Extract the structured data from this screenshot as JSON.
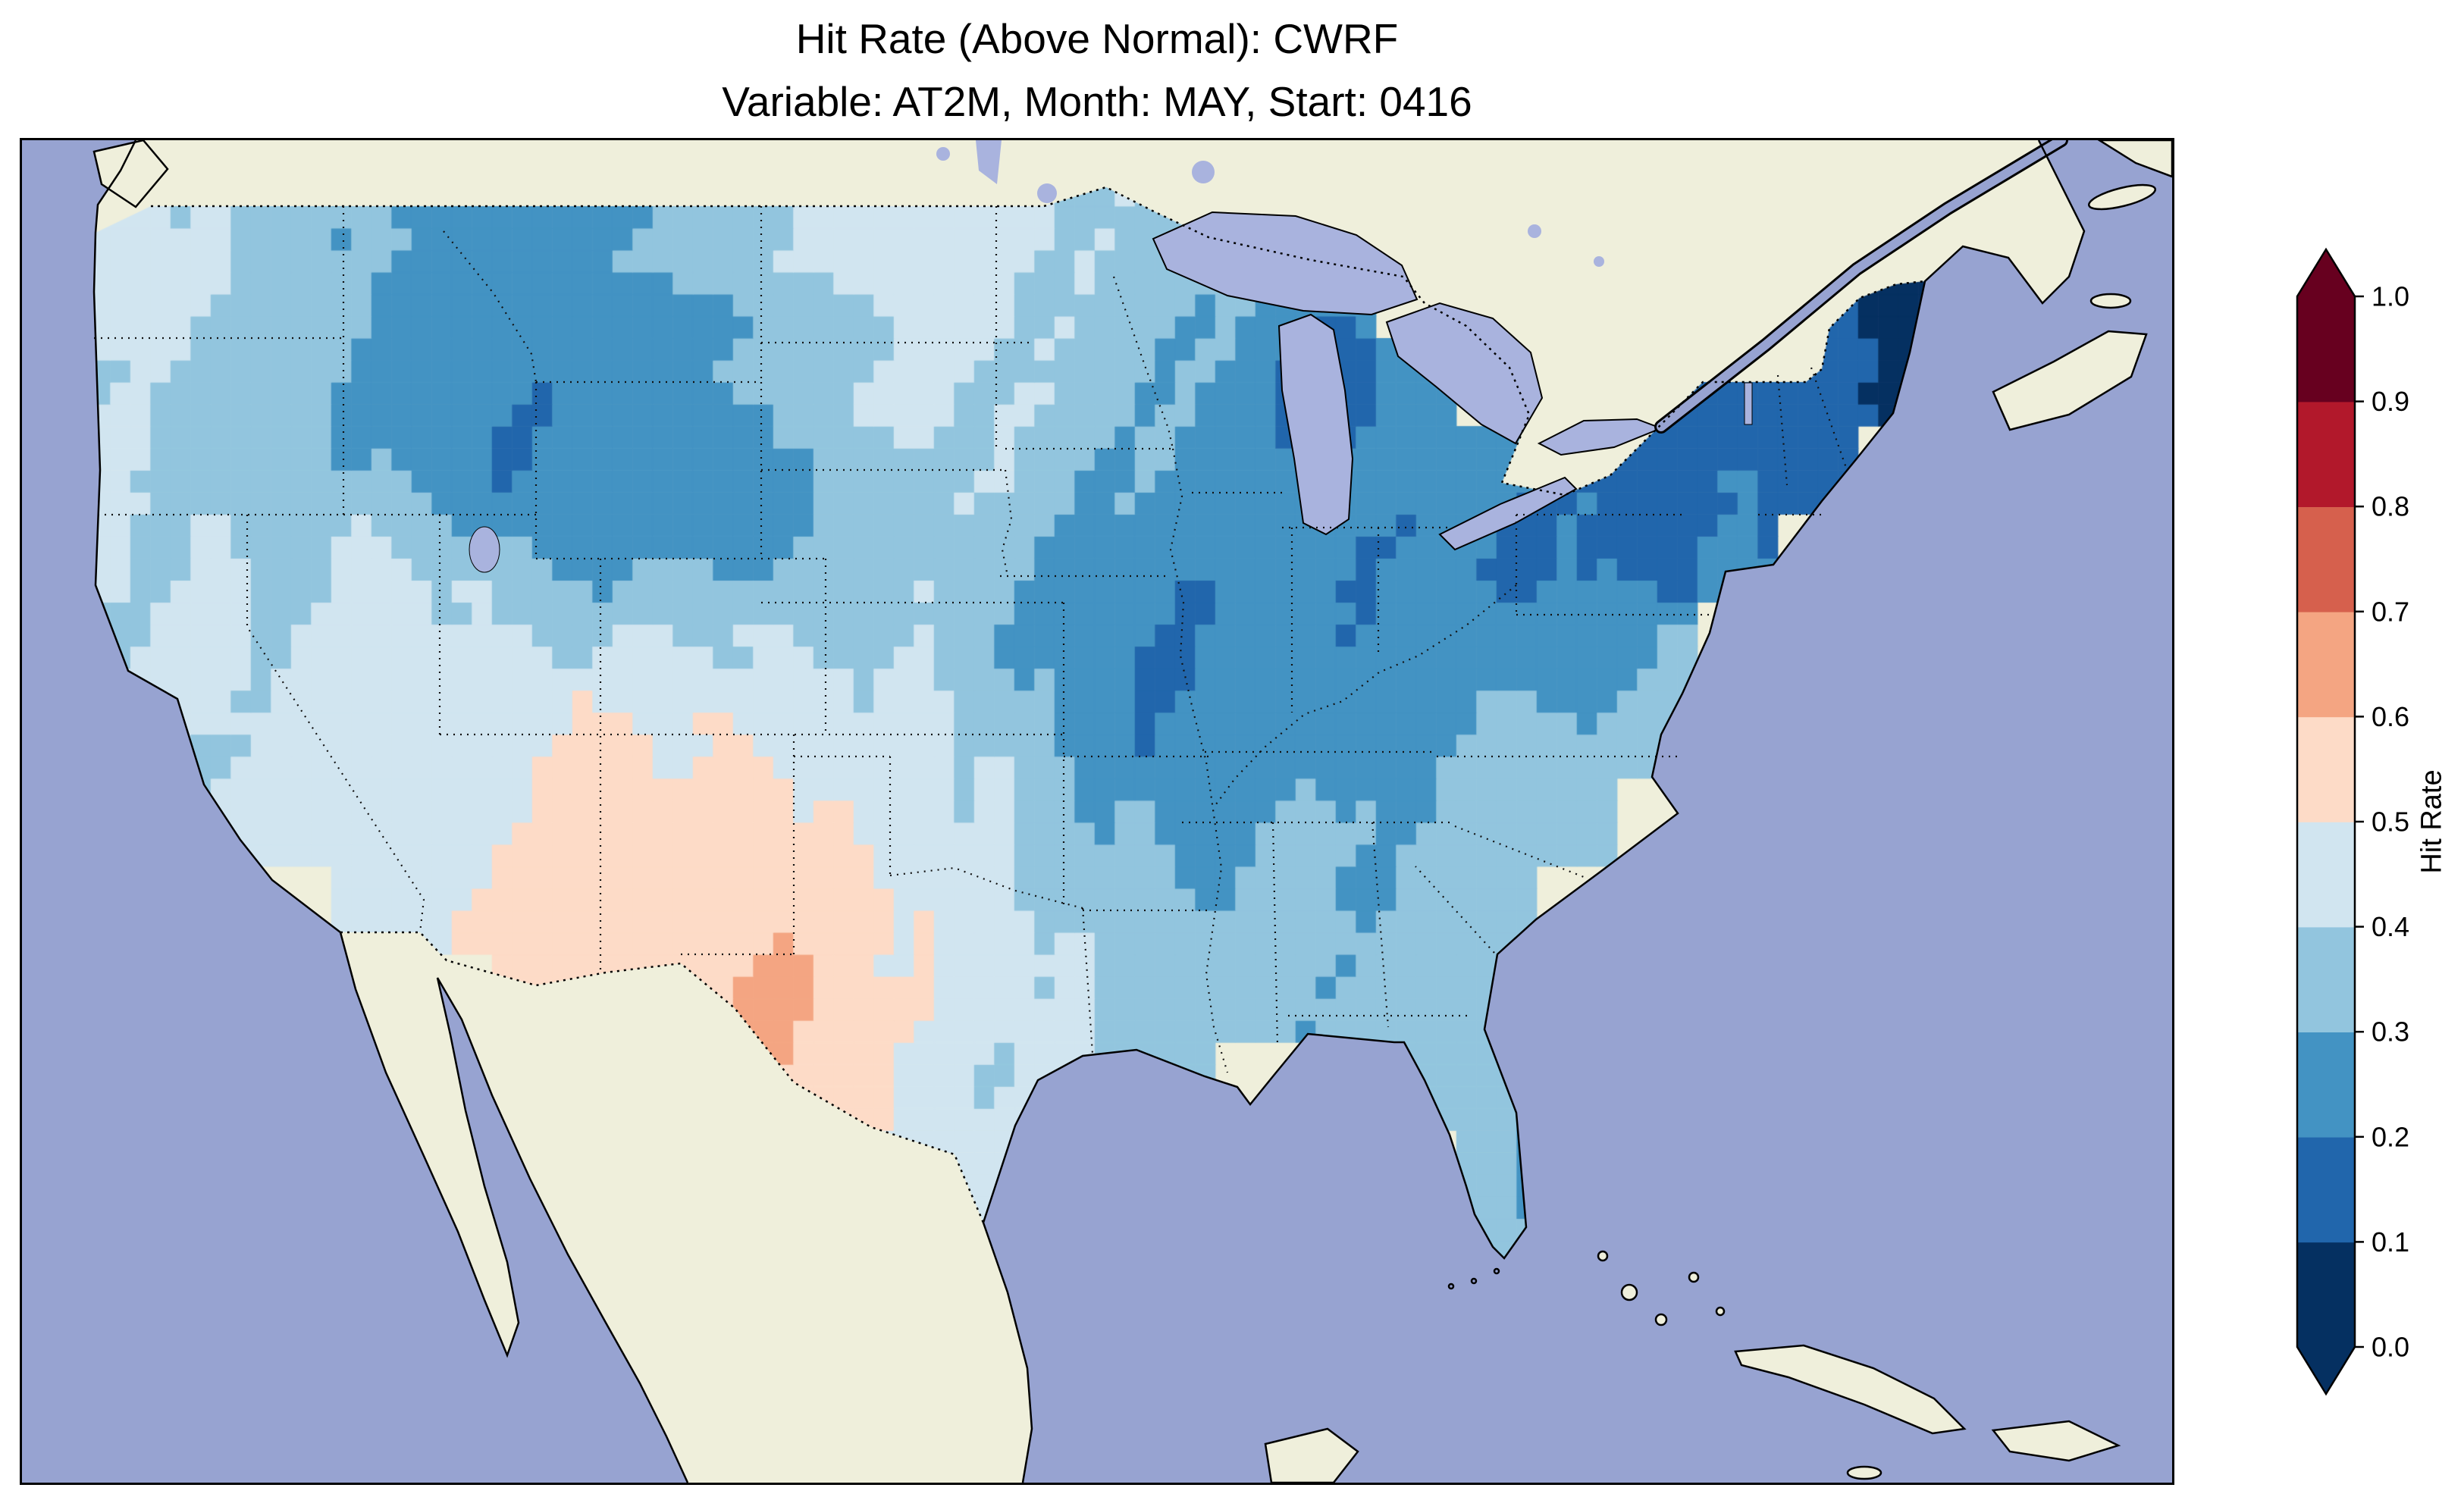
{
  "figure": {
    "title_line1": "Hit Rate (Above Normal): CWRF",
    "title_line2": "Variable: AT2M, Month: MAY, Start: 0416"
  },
  "colorbar": {
    "label": "Hit Rate",
    "ticks": [
      "1.0",
      "0.9",
      "0.8",
      "0.7",
      "0.6",
      "0.5",
      "0.4",
      "0.3",
      "0.2",
      "0.1",
      "0.0"
    ],
    "bin_edges": [
      0.0,
      0.1,
      0.2,
      0.3,
      0.4,
      0.5,
      0.6,
      0.7,
      0.8,
      0.9,
      1.0
    ],
    "colors_low_to_high": [
      "#053061",
      "#2166ac",
      "#4393c3",
      "#92c5de",
      "#d1e5f0",
      "#fddbc7",
      "#f4a582",
      "#d6604d",
      "#b2182b",
      "#67001f"
    ],
    "under_color": "#053061",
    "over_color": "#67001f"
  },
  "map_colors": {
    "ocean": "#97a3d1",
    "land": "#efefdb",
    "lakes": "#a9b3de",
    "coastline": "#000000"
  },
  "chart_data": {
    "type": "heatmap",
    "title": "Hit Rate (Above Normal): CWRF",
    "subtitle": "Variable: AT2M, Month: MAY, Start: 0416",
    "metric": "Hit Rate (Above Normal)",
    "model": "CWRF",
    "variable": "AT2M",
    "month": "MAY",
    "start": "0416",
    "colorbar_label": "Hit Rate",
    "value_range": [
      0.0,
      1.0
    ],
    "region": "Contiguous United States (values masked outside US)",
    "lat_centers": [
      49,
      47,
      45,
      43,
      41,
      39,
      37,
      35,
      33,
      31,
      29,
      27,
      25
    ],
    "lon_centers": [
      -123.75,
      -121.25,
      -118.75,
      -116.25,
      -113.75,
      -111.25,
      -108.75,
      -106.25,
      -103.75,
      -101.25,
      -98.75,
      -96.25,
      -93.75,
      -91.25,
      -88.75,
      -86.25,
      -83.75,
      -81.25,
      -78.75,
      -76.25,
      -73.75,
      -71.25,
      -68.75,
      -66.25
    ],
    "values": [
      [
        0.45,
        0.4,
        0.35,
        0.3,
        0.3,
        0.25,
        0.3,
        0.35,
        0.4,
        0.45,
        0.45,
        0.45,
        0.4,
        0.35,
        0.3,
        0.3,
        null,
        null,
        null,
        null,
        null,
        null,
        null,
        null
      ],
      [
        0.45,
        0.4,
        0.35,
        0.3,
        0.25,
        0.25,
        0.25,
        0.3,
        0.35,
        0.4,
        0.45,
        0.42,
        0.38,
        0.35,
        0.3,
        0.28,
        null,
        null,
        null,
        null,
        0.2,
        0.1,
        0.05,
        null
      ],
      [
        0.4,
        0.38,
        0.35,
        0.28,
        0.22,
        0.22,
        0.25,
        0.25,
        0.3,
        0.38,
        0.42,
        0.4,
        0.35,
        0.3,
        0.25,
        0.1,
        0.25,
        null,
        null,
        0.2,
        0.15,
        0.12,
        0.1,
        null
      ],
      [
        0.4,
        0.35,
        0.32,
        0.3,
        0.22,
        0.2,
        0.22,
        0.25,
        0.28,
        0.35,
        0.4,
        0.38,
        0.32,
        0.28,
        0.25,
        0.22,
        0.25,
        0.22,
        0.18,
        0.16,
        0.18,
        0.15,
        null,
        null
      ],
      [
        0.42,
        0.4,
        0.38,
        0.42,
        0.38,
        0.3,
        0.25,
        0.28,
        0.3,
        0.35,
        0.38,
        0.32,
        0.25,
        0.22,
        0.25,
        0.22,
        0.2,
        0.2,
        0.18,
        0.18,
        0.2,
        null,
        null,
        null
      ],
      [
        0.4,
        0.45,
        0.4,
        0.45,
        0.45,
        0.42,
        0.4,
        0.42,
        0.4,
        0.4,
        0.38,
        0.3,
        0.22,
        0.2,
        0.22,
        0.22,
        0.22,
        0.25,
        0.25,
        0.3,
        null,
        null,
        null,
        null
      ],
      [
        0.38,
        0.42,
        0.42,
        0.45,
        0.48,
        0.5,
        0.52,
        0.5,
        0.48,
        0.45,
        0.42,
        0.35,
        0.25,
        0.2,
        0.22,
        0.25,
        0.28,
        0.3,
        0.32,
        0.35,
        null,
        null,
        null,
        null
      ],
      [
        0.35,
        0.4,
        0.42,
        0.45,
        0.48,
        0.52,
        0.56,
        0.56,
        0.55,
        0.48,
        0.45,
        0.4,
        0.32,
        0.28,
        0.28,
        0.3,
        0.32,
        0.32,
        0.35,
        null,
        null,
        null,
        null,
        null
      ],
      [
        0.35,
        0.4,
        null,
        0.45,
        0.5,
        0.55,
        0.56,
        0.58,
        0.56,
        0.55,
        0.48,
        0.42,
        0.35,
        0.32,
        0.32,
        0.32,
        0.32,
        0.35,
        null,
        null,
        null,
        null,
        null,
        null
      ],
      [
        null,
        null,
        null,
        null,
        null,
        0.55,
        0.56,
        0.58,
        0.66,
        0.55,
        0.5,
        0.45,
        0.4,
        0.35,
        0.35,
        0.32,
        0.35,
        0.38,
        null,
        null,
        null,
        null,
        null,
        null
      ],
      [
        null,
        null,
        null,
        null,
        null,
        null,
        null,
        0.58,
        0.62,
        0.52,
        0.45,
        0.4,
        0.4,
        0.38,
        null,
        null,
        0.35,
        0.3,
        null,
        null,
        null,
        null,
        null,
        null
      ],
      [
        null,
        null,
        null,
        null,
        null,
        null,
        null,
        null,
        null,
        0.52,
        0.48,
        0.45,
        null,
        null,
        null,
        null,
        null,
        0.32,
        0.28,
        null,
        null,
        null,
        null,
        null
      ],
      [
        null,
        null,
        null,
        null,
        null,
        null,
        null,
        null,
        null,
        null,
        0.48,
        0.45,
        null,
        null,
        null,
        null,
        null,
        0.35,
        null,
        null,
        null,
        null,
        null,
        null
      ]
    ]
  }
}
